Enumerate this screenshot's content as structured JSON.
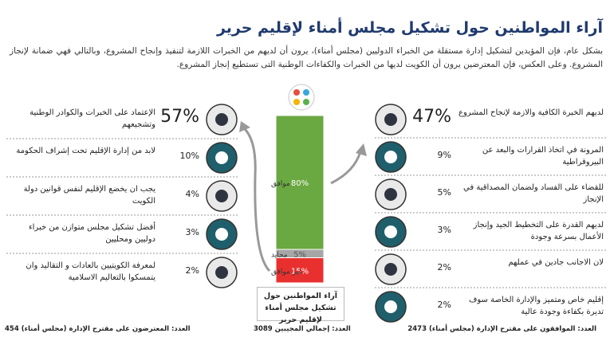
{
  "header": {
    "title": "آراء المواطنين حول تشكيل مجلس أمناء لإقليم حرير",
    "paragraph": "بشكل عام، فإن المؤيدين لتشكيل إدارة مستقلة من الخبراء الدوليين (مجلس أمناء)، يرون أن لديهم من الخبرات اللازمة لتنفيذ وإنجاح المشروع، وبالتالي فهي ضمانة لإنجاز المشروع. وعلى العكس، فإن المعترضين يرون أن الكويت لديها من الخبرات والكفاءات الوطنية التى تستطيع إنجاز المشروع."
  },
  "chart_data": {
    "type": "bar",
    "categories": [
      "آراء المواطنين حول تشكيل مجلس أمناء لإقليم حرير"
    ],
    "ylim": [
      0,
      100
    ],
    "series": [
      {
        "name": "غير موافق",
        "color": "#e8312f",
        "values": [
          15
        ],
        "value_labels": [
          "15%"
        ]
      },
      {
        "name": "محايد",
        "color": "#a6a6a6",
        "values": [
          5
        ],
        "value_labels": [
          "5%"
        ]
      },
      {
        "name": "موافق",
        "color": "#6aa842",
        "values": [
          80
        ],
        "value_labels": [
          "80%"
        ]
      }
    ]
  },
  "supporters": {
    "items": [
      {
        "percent": "47%",
        "text": "لديهم الخبرة الكافية والازمة لإنجاح المشروع"
      },
      {
        "percent": "9%",
        "text": "المرونة في اتخاذ القرارات والبعد عن البيروقراطية"
      },
      {
        "percent": "5%",
        "text": "للقضاء على الفساد ولضمان المصداقية في الإنجاز"
      },
      {
        "percent": "3%",
        "text": "لديهم القدرة على التخطيط الجيد وإنجاز الأعمال بسرعة وجودة"
      },
      {
        "percent": "2%",
        "text": "لان الاجانب جادين في عملهم"
      },
      {
        "percent": "2%",
        "text": "إقليم خاص ومتميز والإدارة الخاصة سوف تديرة بكفاءة وجودة عالية"
      }
    ],
    "footer": "العدد: الموافقون على مقترح الإدارة (مجلس أمناء) 2473"
  },
  "opponents": {
    "items": [
      {
        "percent": "57%",
        "text": "الإعتماد على الخبرات والكوادر الوطنية وتشجيعهم"
      },
      {
        "percent": "10%",
        "text": "لابد من إدارة الإقليم تحت إشراف الحكومة"
      },
      {
        "percent": "4%",
        "text": "يجب ان يخضع الإقليم لنفس قوانين دولة الكويت"
      },
      {
        "percent": "3%",
        "text": "أفضل تشكيل مجلس متوازن من خبراء دوليين ومحليين"
      },
      {
        "percent": "2%",
        "text": "لمعرفة الكويتيين بالعادات و التقاليد وان يتمسكوا بالتعاليم الاسلامية"
      }
    ],
    "footer": "العدد: المعترضون على مقترح الإدارة (مجلس أمناء) 454"
  },
  "total_footer": "العدد: إجمالي المجيبين 3089"
}
